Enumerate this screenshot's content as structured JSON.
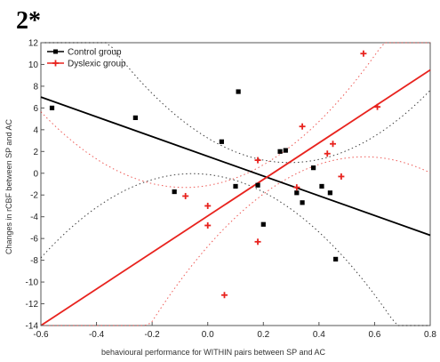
{
  "panel_label": "2*",
  "chart_data": {
    "type": "scatter",
    "xlabel": "behavioural performance for WITHIN pairs between SP and AC",
    "ylabel": "Changes in rCBF between SP and AC",
    "xlim": [
      -0.6,
      0.8
    ],
    "ylim": [
      -14,
      12
    ],
    "x_ticks": [
      "-0.6",
      "-0.4",
      "-0.2",
      "0.0",
      "0.2",
      "0.4",
      "0.6",
      "0.8"
    ],
    "y_ticks": [
      "-14",
      "-12",
      "-10",
      "-8",
      "-6",
      "-4",
      "-2",
      "0",
      "2",
      "4",
      "6",
      "8",
      "10",
      "12"
    ],
    "legend_position": "top-left",
    "series": [
      {
        "name": "Control group",
        "color": "#000000",
        "marker": "square",
        "points": [
          [
            -0.56,
            6.0
          ],
          [
            -0.26,
            5.1
          ],
          [
            -0.12,
            -1.7
          ],
          [
            0.05,
            2.9
          ],
          [
            0.1,
            -1.2
          ],
          [
            0.11,
            7.5
          ],
          [
            0.18,
            -1.1
          ],
          [
            0.2,
            -4.7
          ],
          [
            0.26,
            2.0
          ],
          [
            0.28,
            2.1
          ],
          [
            0.32,
            -1.8
          ],
          [
            0.34,
            -2.7
          ],
          [
            0.38,
            0.5
          ],
          [
            0.41,
            -1.2
          ],
          [
            0.44,
            -1.8
          ],
          [
            0.46,
            -7.9
          ]
        ],
        "fit": [
          [
            -0.6,
            7.0
          ],
          [
            0.8,
            -5.7
          ]
        ]
      },
      {
        "name": "Dyslexic group",
        "color": "#e8231e",
        "marker": "plus",
        "points": [
          [
            -0.08,
            -2.1
          ],
          [
            0.0,
            -3.0
          ],
          [
            0.0,
            -4.8
          ],
          [
            0.06,
            -11.2
          ],
          [
            0.18,
            1.2
          ],
          [
            0.18,
            -6.3
          ],
          [
            0.32,
            -1.3
          ],
          [
            0.34,
            4.3
          ],
          [
            0.43,
            1.8
          ],
          [
            0.45,
            2.7
          ],
          [
            0.48,
            -0.3
          ],
          [
            0.56,
            11.0
          ],
          [
            0.61,
            6.1
          ]
        ],
        "fit": [
          [
            -0.6,
            -14.0
          ],
          [
            0.8,
            9.5
          ]
        ]
      }
    ]
  }
}
